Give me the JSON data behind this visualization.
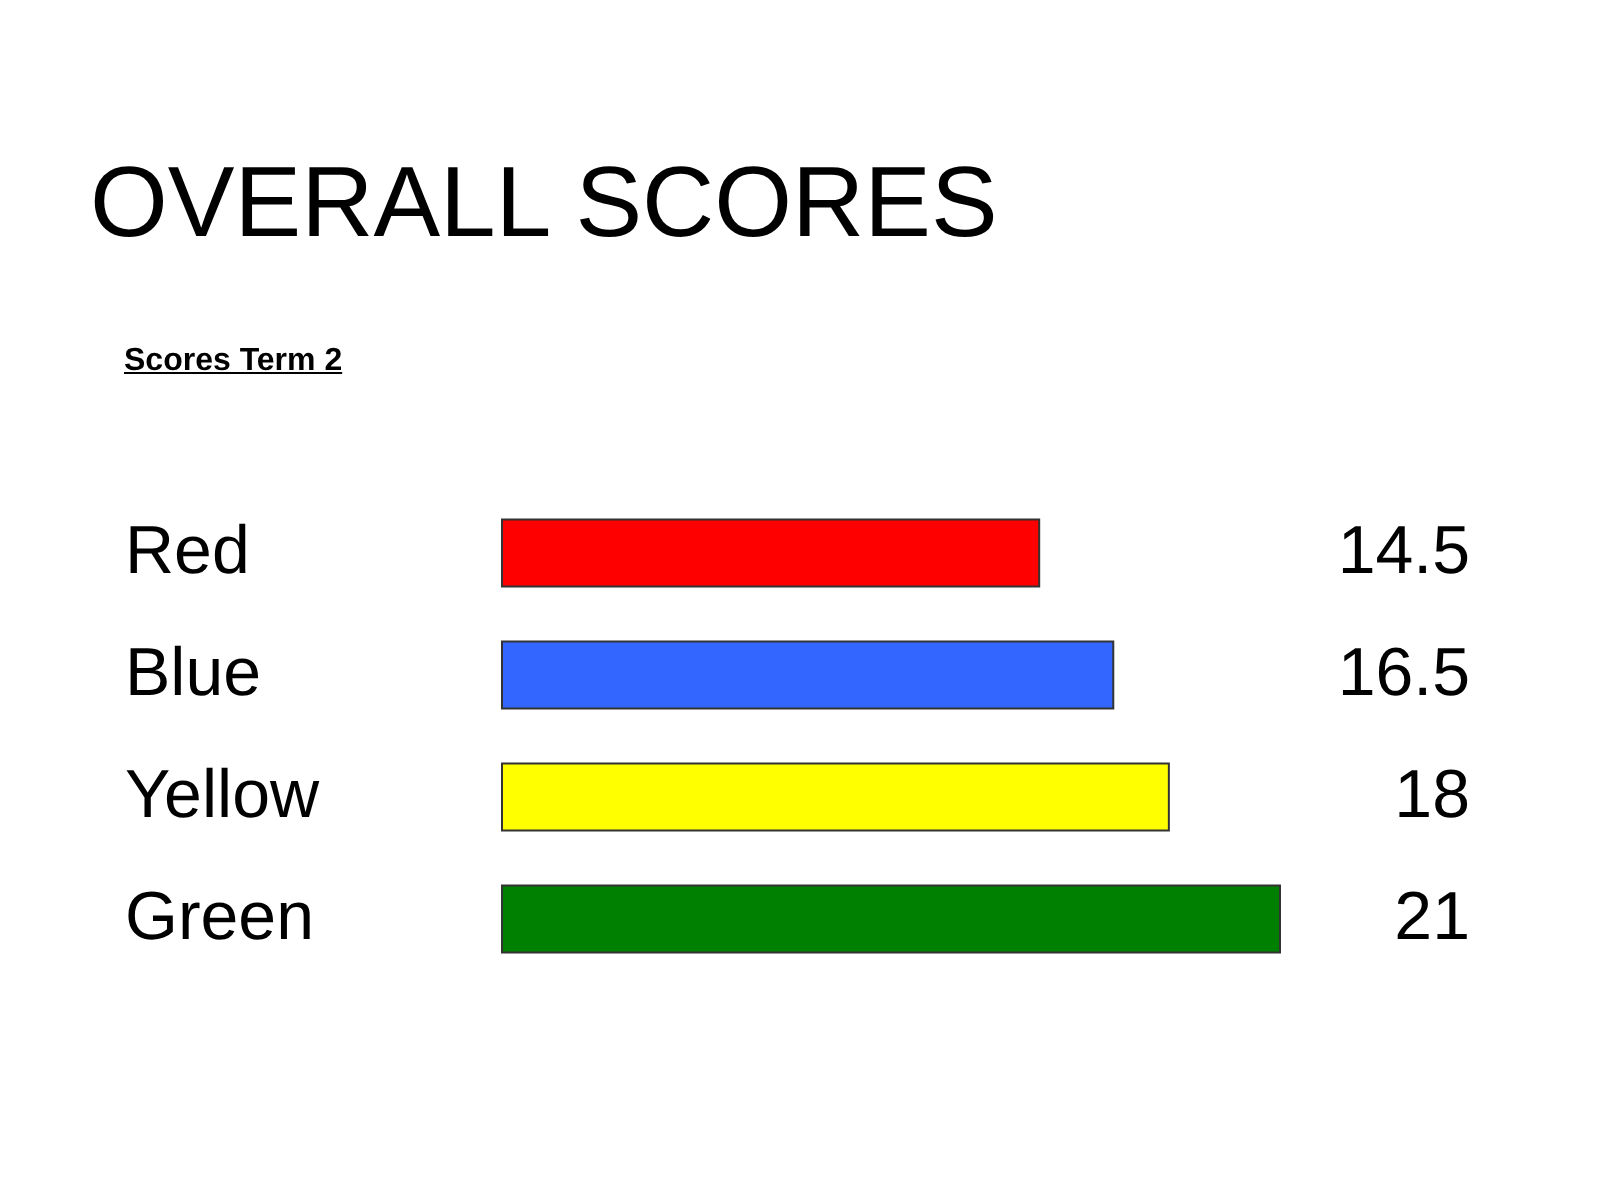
{
  "chart_data": {
    "type": "bar",
    "title": "OVERALL SCORES",
    "subtitle": "Scores Term 2",
    "orientation": "horizontal",
    "categories": [
      "Red",
      "Blue",
      "Yellow",
      "Green"
    ],
    "values": [
      14.5,
      16.5,
      18,
      21
    ],
    "colors": [
      "#ff0000",
      "#3366ff",
      "#ffff00",
      "#008000"
    ],
    "data_labels": true
  }
}
